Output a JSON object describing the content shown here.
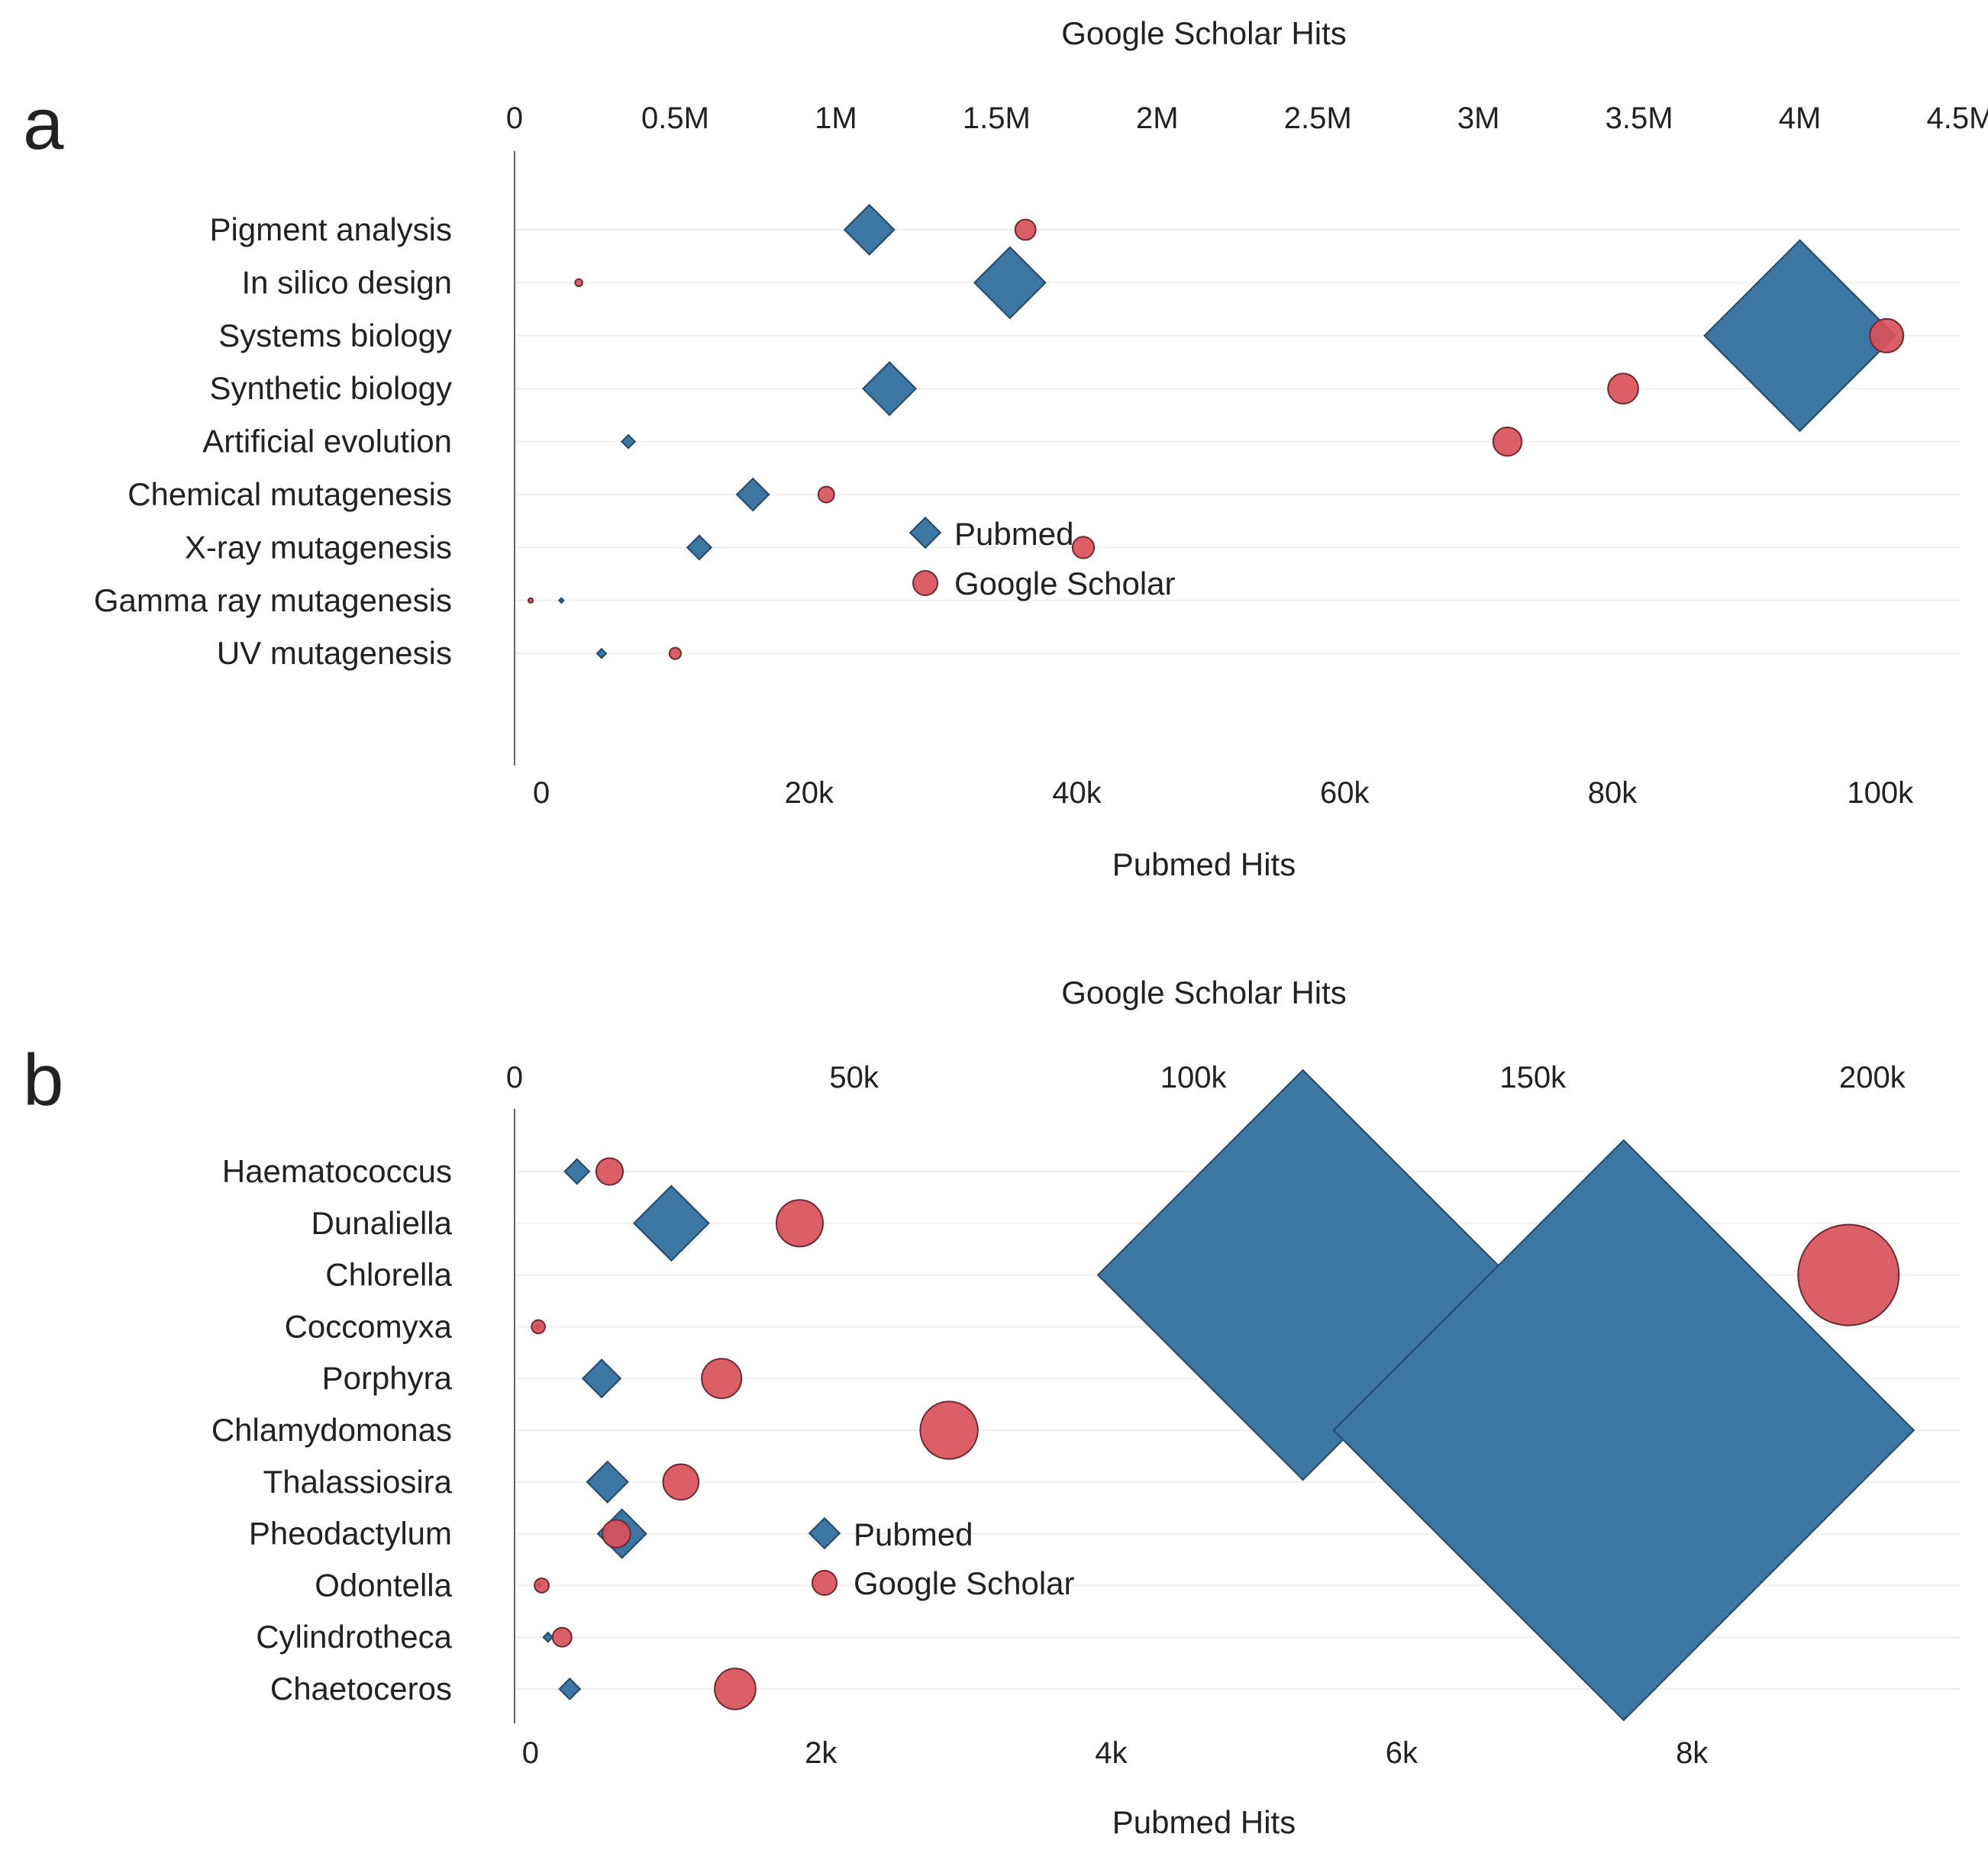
{
  "chart_data": [
    {
      "type": "scatter",
      "panel_label": "a",
      "top_axis_title": "Google Scholar Hits",
      "bottom_axis_title": "Pubmed Hits",
      "top_axis": {
        "range": [
          0,
          4500000
        ],
        "ticks": [
          0,
          500000,
          1000000,
          1500000,
          2000000,
          2500000,
          3000000,
          3500000,
          4000000,
          4500000
        ],
        "tick_labels": [
          "0",
          "0.5M",
          "1M",
          "1.5M",
          "2M",
          "2.5M",
          "3M",
          "3.5M",
          "4M",
          "4.5M"
        ]
      },
      "bottom_axis": {
        "range": [
          -2000,
          106000
        ],
        "ticks": [
          0,
          20000,
          40000,
          60000,
          80000,
          100000
        ],
        "tick_labels": [
          "0",
          "20k",
          "40k",
          "60k",
          "80k",
          "100k"
        ]
      },
      "categories": [
        "Pigment analysis",
        "In silico design",
        "Systems biology",
        "Synthetic biology",
        "Artificial evolution",
        "Chemical mutagenesis",
        "X-ray mutagenesis",
        "Gamma ray mutagenesis",
        "UV mutagenesis"
      ],
      "series": [
        {
          "name": "Pubmed",
          "marker": "diamond",
          "color": "#3C76A2",
          "axis": "bottom",
          "values": [
            24500,
            35000,
            94000,
            26000,
            6500,
            15800,
            11800,
            1500,
            4500
          ]
        },
        {
          "name": "Google Scholar",
          "marker": "circle",
          "color": "#D9505A",
          "axis": "top",
          "values": [
            1590000,
            200000,
            4270000,
            3450000,
            3090000,
            970000,
            1770000,
            50000,
            500000
          ]
        }
      ],
      "legend": {
        "entries": [
          "Pubmed",
          "Google Scholar"
        ],
        "position": "center"
      }
    },
    {
      "type": "scatter",
      "panel_label": "b",
      "top_axis_title": "Google Scholar Hits",
      "bottom_axis_title": "Pubmed Hits",
      "top_axis": {
        "range": [
          0,
          213000
        ],
        "ticks": [
          0,
          50000,
          100000,
          150000,
          200000
        ],
        "tick_labels": [
          "0",
          "50k",
          "100k",
          "150k",
          "200k"
        ]
      },
      "bottom_axis": {
        "range": [
          -110,
          9850
        ],
        "ticks": [
          0,
          2000,
          4000,
          6000,
          8000
        ],
        "tick_labels": [
          "0",
          "2k",
          "4k",
          "6k",
          "8k"
        ]
      },
      "categories": [
        "Haematococcus",
        "Dunaliella",
        "Chlorella",
        "Coccomyxa",
        "Porphyra",
        "Chlamydomonas",
        "Thalassiosira",
        "Pheodactylum",
        "Odontella",
        "Cylindrotheca",
        "Chaetoceros"
      ],
      "series": [
        {
          "name": "Pubmed",
          "marker": "diamond",
          "color": "#3C76A2",
          "axis": "bottom",
          "values": [
            320,
            970,
            5320,
            50,
            490,
            7530,
            530,
            630,
            60,
            120,
            270
          ]
        },
        {
          "name": "Google Scholar",
          "marker": "circle",
          "color": "#D9505A",
          "axis": "top",
          "values": [
            14000,
            42000,
            196500,
            3500,
            30500,
            64000,
            24500,
            15000,
            4000,
            7000,
            32500
          ]
        }
      ],
      "legend": {
        "entries": [
          "Pubmed",
          "Google Scholar"
        ],
        "position": "center"
      }
    }
  ]
}
